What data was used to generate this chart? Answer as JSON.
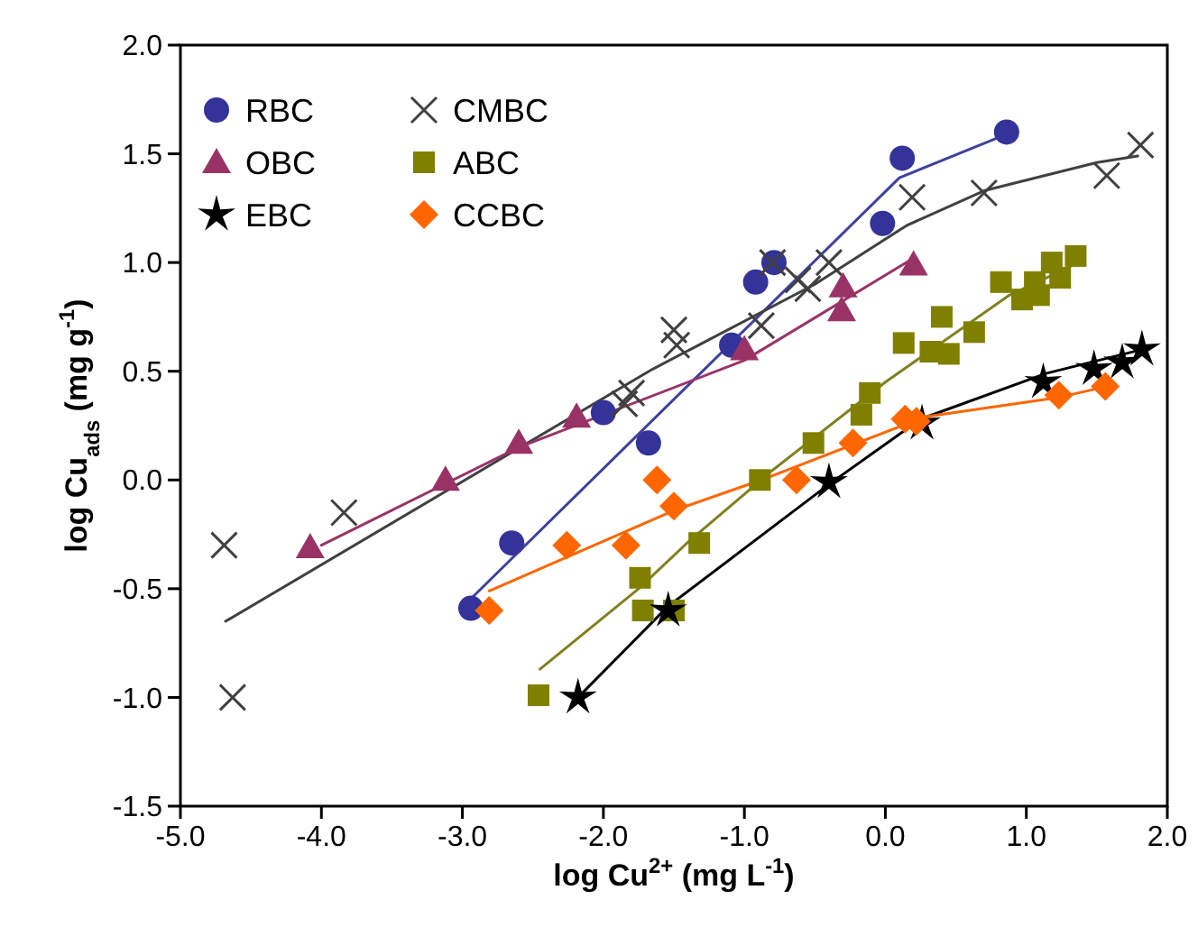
{
  "chart_data": {
    "type": "scatter",
    "xlabel": "log Cu$^{2+}$ (mg L$^{-1}$)",
    "ylabel": "log Cu$_{ads}$ (mg g$^{-1}$)",
    "xlim": [
      -5,
      2
    ],
    "ylim": [
      -1.5,
      2
    ],
    "xticks": [
      {
        "value": -5,
        "label": "-5.0"
      },
      {
        "value": -4,
        "label": "-4.0"
      },
      {
        "value": -3,
        "label": "-3.0"
      },
      {
        "value": -2,
        "label": "-2.0"
      },
      {
        "value": -1,
        "label": "-1.0"
      },
      {
        "value": 0,
        "label": "0.0"
      },
      {
        "value": 1,
        "label": "1.0"
      },
      {
        "value": 2,
        "label": "2.0"
      }
    ],
    "yticks": [
      {
        "value": -1.5,
        "label": "-1.5"
      },
      {
        "value": -1,
        "label": "-1.0"
      },
      {
        "value": -0.5,
        "label": "-0.5"
      },
      {
        "value": 0,
        "label": "0.0"
      },
      {
        "value": 0.5,
        "label": "0.5"
      },
      {
        "value": 1,
        "label": "1.0"
      },
      {
        "value": 1.5,
        "label": "1.5"
      },
      {
        "value": 2,
        "label": "2.0"
      }
    ],
    "grid": false,
    "legend": "top left",
    "series": [
      {
        "name": "RBC",
        "marker": "circle",
        "color": "#333399",
        "x": [
          -2.94,
          -2.65,
          -1.68,
          -2.0,
          -1.09,
          -0.92,
          -0.79,
          -0.02,
          0.12,
          0.86
        ],
        "values": [
          -0.59,
          -0.29,
          0.17,
          0.31,
          0.62,
          0.91,
          1.0,
          1.18,
          1.48,
          1.6
        ]
      },
      {
        "name": "CMBC",
        "marker": "cross",
        "color": "#404040",
        "x": [
          -4.69,
          -4.63,
          -3.84,
          -1.85,
          -1.8,
          -1.5,
          -1.48,
          -0.88,
          -0.8,
          -0.62,
          -0.55,
          -0.4,
          0.19,
          0.7,
          1.57,
          1.81
        ],
        "values": [
          -0.3,
          -1.0,
          -0.15,
          0.35,
          0.4,
          0.69,
          0.62,
          0.71,
          1.0,
          0.92,
          0.88,
          1.0,
          1.3,
          1.32,
          1.4,
          1.54
        ]
      },
      {
        "name": "OBC",
        "marker": "triangle",
        "color": "#993366",
        "x": [
          -4.08,
          -3.12,
          -2.6,
          -2.19,
          -1.0,
          -0.31,
          -0.3,
          0.2
        ],
        "values": [
          -0.31,
          0.0,
          0.17,
          0.29,
          0.6,
          0.78,
          0.89,
          0.99
        ]
      },
      {
        "name": "ABC",
        "marker": "square",
        "color": "#808000",
        "x": [
          -2.46,
          -1.74,
          -1.72,
          -1.5,
          -1.32,
          -0.89,
          -0.51,
          -0.17,
          -0.11,
          0.13,
          0.32,
          0.45,
          0.4,
          0.63,
          0.82,
          0.97,
          1.09,
          1.06,
          1.18,
          1.24,
          1.35
        ],
        "values": [
          -0.99,
          -0.45,
          -0.6,
          -0.6,
          -0.29,
          0.0,
          0.17,
          0.3,
          0.4,
          0.63,
          0.59,
          0.58,
          0.75,
          0.68,
          0.91,
          0.83,
          0.85,
          0.91,
          1.0,
          0.93,
          1.03
        ]
      },
      {
        "name": "EBC",
        "marker": "star",
        "color": "#000000",
        "x": [
          -2.18,
          -1.54,
          -0.4,
          0.26,
          1.12,
          1.48,
          1.68,
          1.82
        ],
        "values": [
          -1.0,
          -0.6,
          -0.01,
          0.26,
          0.45,
          0.51,
          0.54,
          0.6
        ]
      },
      {
        "name": "CCBC",
        "marker": "diamond",
        "color": "#ff6600",
        "x": [
          -2.81,
          -2.26,
          -1.84,
          -1.62,
          -1.5,
          -0.63,
          -0.23,
          0.14,
          0.22,
          1.23,
          1.56
        ],
        "values": [
          -0.6,
          -0.3,
          -0.3,
          0.0,
          -0.12,
          0.0,
          0.17,
          0.28,
          0.27,
          0.39,
          0.43
        ]
      },
      {
        "type": "line",
        "marker": "none",
        "color": "#4040a0",
        "x": [
          -2.93,
          0.1,
          0.82
        ],
        "values": [
          -0.54,
          1.39,
          1.58
        ]
      },
      {
        "type": "line",
        "marker": "none",
        "color": "#404040",
        "x": [
          -4.68,
          -1.65,
          -0.5,
          0.15,
          0.7,
          1.5,
          1.79
        ],
        "values": [
          -0.65,
          0.51,
          0.9,
          1.17,
          1.33,
          1.46,
          1.49
        ]
      },
      {
        "type": "line",
        "marker": "none",
        "color": "#993366",
        "x": [
          -4.0,
          -2.6,
          -1.0,
          0.2
        ],
        "values": [
          -0.3,
          0.15,
          0.55,
          1.02
        ]
      },
      {
        "type": "line",
        "marker": "none",
        "color": "#808020",
        "x": [
          -2.45,
          -1.75,
          -1.39,
          -0.79,
          0.0,
          0.88,
          1.31
        ],
        "values": [
          -0.87,
          -0.5,
          -0.28,
          0.05,
          0.45,
          0.85,
          0.98
        ]
      },
      {
        "type": "line",
        "marker": "none",
        "color": "#000000",
        "x": [
          -2.18,
          -1.54,
          -0.4,
          0.25,
          1.14,
          1.82
        ],
        "values": [
          -1.0,
          -0.58,
          -0.02,
          0.28,
          0.49,
          0.6
        ]
      },
      {
        "type": "line",
        "marker": "none",
        "color": "#ff6600",
        "x": [
          -2.81,
          -1.5,
          -0.88,
          0.28,
          1.23,
          1.57
        ],
        "values": [
          -0.51,
          -0.14,
          0.0,
          0.29,
          0.38,
          0.43
        ]
      }
    ]
  }
}
